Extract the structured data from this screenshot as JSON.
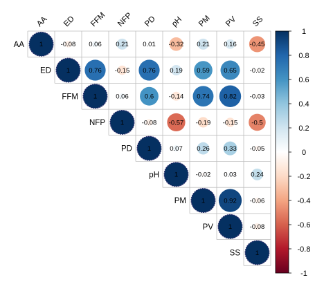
{
  "chart_data": {
    "type": "heatmap",
    "style": "upper-triangular correlation matrix, circles sized by |r| with coefficient labels",
    "variables": [
      "AA",
      "ED",
      "FFM",
      "NFP",
      "PD",
      "pH",
      "PM",
      "PV",
      "SS"
    ],
    "matrix": [
      [
        1,
        -0.08,
        0.06,
        0.21,
        0.01,
        -0.32,
        0.21,
        0.16,
        -0.45
      ],
      [
        -0.08,
        1,
        0.76,
        -0.15,
        0.76,
        0.19,
        0.59,
        0.65,
        -0.02
      ],
      [
        0.06,
        0.76,
        1,
        0.06,
        0.6,
        -0.14,
        0.74,
        0.82,
        -0.03
      ],
      [
        0.21,
        -0.15,
        0.06,
        1,
        -0.08,
        -0.57,
        -0.19,
        -0.15,
        -0.5
      ],
      [
        0.01,
        0.76,
        0.6,
        -0.08,
        1,
        0.07,
        0.26,
        0.33,
        -0.05
      ],
      [
        -0.32,
        0.19,
        -0.14,
        -0.57,
        0.07,
        1,
        -0.02,
        0.03,
        0.24
      ],
      [
        0.21,
        0.59,
        0.74,
        -0.19,
        0.26,
        -0.02,
        1,
        0.92,
        -0.06
      ],
      [
        0.16,
        0.65,
        0.82,
        -0.15,
        0.33,
        0.03,
        0.92,
        1,
        -0.08
      ],
      [
        -0.45,
        -0.02,
        -0.03,
        -0.5,
        -0.05,
        0.24,
        -0.06,
        -0.08,
        1
      ]
    ],
    "labels": [
      [
        "1",
        "-0.08",
        "0.06",
        "0.21",
        "0.01",
        "-0.32",
        "0.21",
        "0.16",
        "-0.45"
      ],
      [
        "",
        "1",
        "0.76",
        "-0.15",
        "0.76",
        "0.19",
        "0.59",
        "0.65",
        "-0.02"
      ],
      [
        "",
        "",
        "1",
        "0.06",
        "0.6",
        "-0.14",
        "0.74",
        "0.82",
        "-0.03"
      ],
      [
        "",
        "",
        "",
        "1",
        "-0.08",
        "-0.57",
        "-0.19",
        "-0.15",
        "-0.5"
      ],
      [
        "",
        "",
        "",
        "",
        "1",
        "0.07",
        "0.26",
        "0.33",
        "-0.05"
      ],
      [
        "",
        "",
        "",
        "",
        "",
        "1",
        "-0.02",
        "0.03",
        "0.24"
      ],
      [
        "",
        "",
        "",
        "",
        "",
        "",
        "1",
        "0.92",
        "-0.06"
      ],
      [
        "",
        "",
        "",
        "",
        "",
        "",
        "",
        "1",
        "-0.08"
      ],
      [
        "",
        "",
        "",
        "",
        "",
        "",
        "",
        "",
        "1"
      ]
    ],
    "colorbar": {
      "range": [
        -1,
        1
      ],
      "ticks": [
        1,
        0.8,
        0.6,
        0.4,
        0.2,
        0,
        -0.2,
        -0.4,
        -0.6,
        -0.8,
        -1
      ],
      "tick_labels": [
        "1",
        "0.8",
        "0.6",
        "0.4",
        "0.2",
        "0",
        "-0.2",
        "-0.4",
        "-0.6",
        "-0.8",
        "-1"
      ],
      "placement": "right",
      "colors": [
        "#67001F",
        "#B2182B",
        "#D6604D",
        "#F4A582",
        "#FDDBC7",
        "#FFFFFF",
        "#D1E5F0",
        "#92C5DE",
        "#4393C3",
        "#2166AC",
        "#053061"
      ]
    },
    "title": "",
    "grid": true
  }
}
